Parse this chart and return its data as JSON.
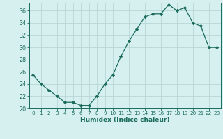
{
  "x": [
    0,
    1,
    2,
    3,
    4,
    5,
    6,
    7,
    8,
    9,
    10,
    11,
    12,
    13,
    14,
    15,
    16,
    17,
    18,
    19,
    20,
    21,
    22,
    23
  ],
  "y": [
    25.5,
    24,
    23,
    22,
    21,
    21,
    20.5,
    20.5,
    22,
    24,
    25.5,
    28.5,
    31,
    33,
    35,
    35.5,
    35.5,
    37,
    36,
    36.5,
    34,
    33.5,
    30,
    30
  ],
  "line_color": "#1a6b5a",
  "marker": "D",
  "marker_size": 2.2,
  "bg_color": "#d6f0f0",
  "grid_color": "#b8d8d4",
  "xlabel": "Humidex (Indice chaleur)",
  "ylim": [
    20,
    37
  ],
  "yticks": [
    20,
    22,
    24,
    26,
    28,
    30,
    32,
    34,
    36
  ],
  "xticks": [
    0,
    1,
    2,
    3,
    4,
    5,
    6,
    7,
    8,
    9,
    10,
    11,
    12,
    13,
    14,
    15,
    16,
    17,
    18,
    19,
    20,
    21,
    22,
    23
  ],
  "xlabel_fontsize": 6.5,
  "tick_fontsize": 5.2,
  "ytick_fontsize": 5.8
}
